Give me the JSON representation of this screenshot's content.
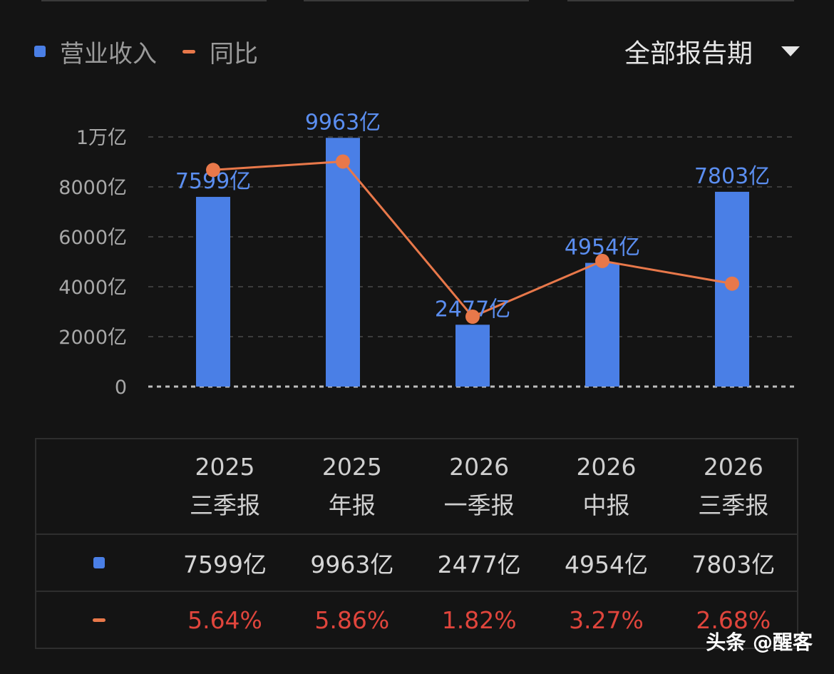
{
  "legend": {
    "revenue_label": "营业收入",
    "yoy_label": "同比",
    "revenue_color": "#4a7fe6",
    "yoy_color": "#e8784a"
  },
  "period_select": {
    "label": "全部报告期",
    "icon": "caret-down-icon"
  },
  "chart_data": {
    "type": "bar",
    "categories": [
      "2025 三季报",
      "2025 年报",
      "2026 一季报",
      "2026 中报",
      "2026 三季报"
    ],
    "series": [
      {
        "name": "营业收入",
        "type": "bar",
        "values": [
          7599,
          9963,
          2477,
          4954,
          7803
        ],
        "labels": [
          "7599亿",
          "9963亿",
          "2477亿",
          "4954亿",
          "7803亿"
        ],
        "color": "#4a7fe6"
      },
      {
        "name": "同比",
        "type": "line",
        "values": [
          5.64,
          5.86,
          1.82,
          3.27,
          2.68
        ],
        "color": "#e8784a"
      }
    ],
    "y_ticks": [
      "0",
      "2000亿",
      "4000亿",
      "6000亿",
      "8000亿",
      "1万亿"
    ],
    "ylim": [
      0,
      10000
    ],
    "y2lim": [
      0,
      6.5
    ],
    "grid": true
  },
  "table": {
    "columns": [
      {
        "year": "2025",
        "period": "三季报"
      },
      {
        "year": "2025",
        "period": "年报"
      },
      {
        "year": "2026",
        "period": "一季报"
      },
      {
        "year": "2026",
        "period": "中报"
      },
      {
        "year": "2026",
        "period": "三季报"
      }
    ],
    "revenue": [
      "7599亿",
      "9963亿",
      "2477亿",
      "4954亿",
      "7803亿"
    ],
    "yoy": [
      "5.64%",
      "5.86%",
      "1.82%",
      "3.27%",
      "2.68%"
    ]
  },
  "watermark": "头条 @醒客"
}
